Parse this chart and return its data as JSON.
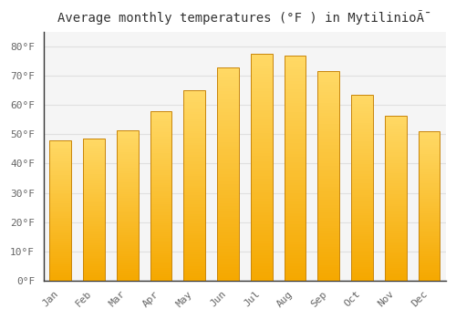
{
  "title": "Average monthly temperatures (°F ) in MytilinioÃ¯",
  "months": [
    "Jan",
    "Feb",
    "Mar",
    "Apr",
    "May",
    "Jun",
    "Jul",
    "Aug",
    "Sep",
    "Oct",
    "Nov",
    "Dec"
  ],
  "values": [
    48,
    48.5,
    51.5,
    58,
    65,
    73,
    77.5,
    77,
    71.5,
    63.5,
    56.5,
    51
  ],
  "bar_color_bottom": "#F5A800",
  "bar_color_top": "#FFD966",
  "bar_edge_color": "#C8850A",
  "background_color": "#FFFFFF",
  "plot_bg_color": "#F5F5F5",
  "grid_color": "#E0E0E0",
  "ylabel_tick_labels": [
    "0°F",
    "10°F",
    "20°F",
    "30°F",
    "40°F",
    "50°F",
    "60°F",
    "70°F",
    "80°F"
  ],
  "yticks": [
    0,
    10,
    20,
    30,
    40,
    50,
    60,
    70,
    80
  ],
  "ylim": [
    0,
    85
  ],
  "title_fontsize": 10,
  "tick_fontsize": 8,
  "font_family": "monospace"
}
